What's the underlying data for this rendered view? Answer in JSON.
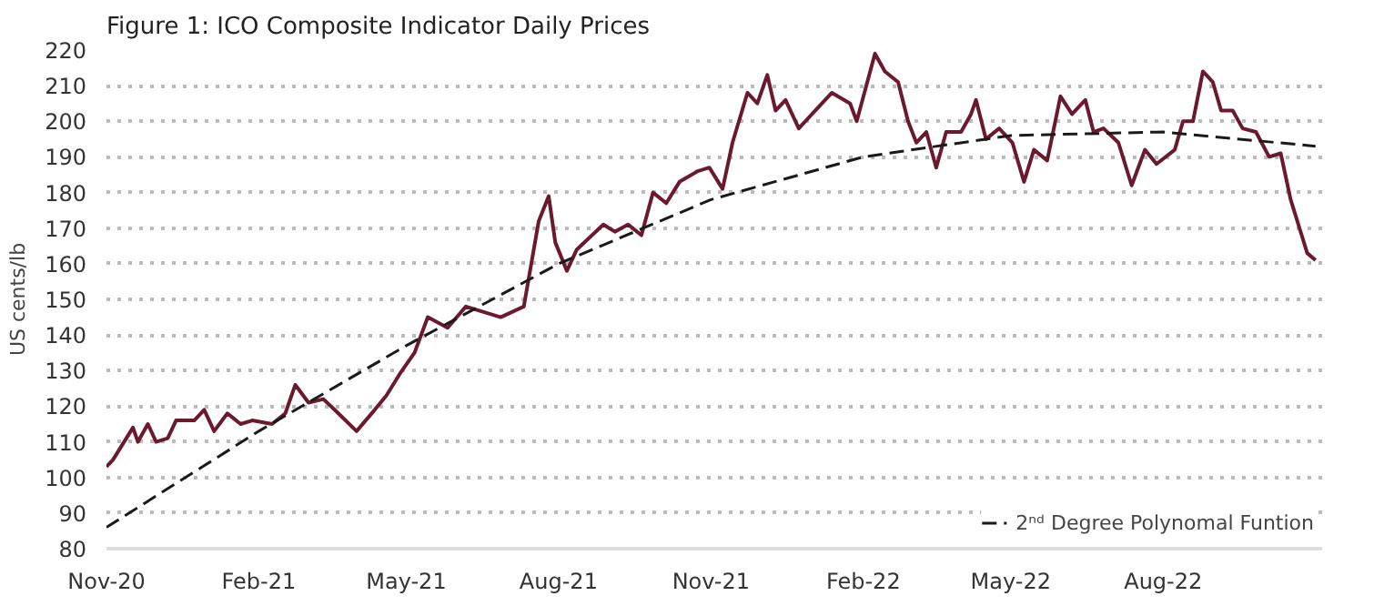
{
  "chart_data": {
    "type": "line",
    "title": "Figure 1: ICO Composite Indicator Daily Prices",
    "ylabel": "US cents/lb",
    "ylim": [
      80,
      220
    ],
    "yticks": [
      80,
      90,
      100,
      110,
      120,
      130,
      140,
      150,
      160,
      170,
      180,
      190,
      200,
      210,
      220
    ],
    "xlim": [
      "2020-11-01",
      "2022-11-05"
    ],
    "xticks": [
      {
        "value": "2020-11-01",
        "label": "Nov-20"
      },
      {
        "value": "2021-02-01",
        "label": "Feb-21"
      },
      {
        "value": "2021-05-01",
        "label": "May-21"
      },
      {
        "value": "2021-08-01",
        "label": "Aug-21"
      },
      {
        "value": "2021-11-01",
        "label": "Nov-21"
      },
      {
        "value": "2022-02-01",
        "label": "Feb-22"
      },
      {
        "value": "2022-05-01",
        "label": "May-22"
      },
      {
        "value": "2022-08-01",
        "label": "Aug-22"
      }
    ],
    "grid": "y",
    "legend": "bottom right",
    "series": [
      {
        "color": "#6b1a2e",
        "line_style": "solid",
        "x": [
          "2020-11-01",
          "2020-11-05",
          "2020-11-17",
          "2020-11-20",
          "2020-11-26",
          "2020-12-01",
          "2020-12-08",
          "2020-12-13",
          "2020-12-24",
          "2020-12-30",
          "2021-01-05",
          "2021-01-13",
          "2021-01-21",
          "2021-01-28",
          "2021-02-09",
          "2021-02-17",
          "2021-02-23",
          "2021-03-03",
          "2021-03-12",
          "2021-03-21",
          "2021-04-01",
          "2021-04-12",
          "2021-04-19",
          "2021-04-27",
          "2021-05-06",
          "2021-05-14",
          "2021-05-26",
          "2021-06-06",
          "2021-06-27",
          "2021-07-11",
          "2021-07-20",
          "2021-07-26",
          "2021-07-30",
          "2021-08-06",
          "2021-08-12",
          "2021-08-28",
          "2021-09-04",
          "2021-09-12",
          "2021-09-20",
          "2021-09-27",
          "2021-10-05",
          "2021-10-13",
          "2021-10-24",
          "2021-10-31",
          "2021-11-08",
          "2021-11-14",
          "2021-11-23",
          "2021-11-29",
          "2021-12-05",
          "2021-12-10",
          "2021-12-16",
          "2021-12-24",
          "2022-01-01",
          "2022-01-13",
          "2022-01-24",
          "2022-01-28",
          "2022-02-08",
          "2022-02-14",
          "2022-02-22",
          "2022-02-28",
          "2022-03-05",
          "2022-03-11",
          "2022-03-17",
          "2022-03-23",
          "2022-04-01",
          "2022-04-07",
          "2022-04-10",
          "2022-04-16",
          "2022-04-24",
          "2022-05-02",
          "2022-05-09",
          "2022-05-15",
          "2022-05-23",
          "2022-05-31",
          "2022-06-07",
          "2022-06-15",
          "2022-06-20",
          "2022-06-26",
          "2022-07-05",
          "2022-07-13",
          "2022-07-21",
          "2022-07-28",
          "2022-08-08",
          "2022-08-13",
          "2022-08-19",
          "2022-08-25",
          "2022-08-31",
          "2022-09-05",
          "2022-09-12",
          "2022-09-18",
          "2022-09-26",
          "2022-10-04",
          "2022-10-11",
          "2022-10-17",
          "2022-10-27",
          "2022-11-01"
        ],
        "values": [
          103,
          105,
          114,
          110,
          115,
          110,
          111,
          116,
          116,
          119,
          113,
          118,
          115,
          116,
          115,
          118,
          126,
          121,
          122,
          118,
          113,
          119,
          123,
          129,
          135,
          145,
          142,
          148,
          145,
          148,
          172,
          179,
          166,
          158,
          164,
          171,
          169,
          171,
          168,
          180,
          177,
          183,
          186,
          187,
          181,
          194,
          208,
          205,
          213,
          203,
          206,
          198,
          202,
          208,
          205,
          200,
          219,
          214,
          211,
          200,
          194,
          197,
          187,
          197,
          197,
          202,
          206,
          195,
          198,
          194,
          183,
          192,
          189,
          207,
          202,
          206,
          197,
          198,
          194,
          182,
          192,
          188,
          192,
          200,
          200,
          214,
          211,
          203,
          203,
          198,
          197,
          190,
          191,
          178,
          163,
          161
        ]
      },
      {
        "name": "2ⁿᵈ Degree Polynomal Funtion",
        "color": "#1a1a1a",
        "line_style": "dashed",
        "x": [
          "2020-11-01",
          "2021-02-01",
          "2021-05-01",
          "2021-08-01",
          "2021-11-01",
          "2022-02-01",
          "2022-05-01",
          "2022-08-01",
          "2022-11-01"
        ],
        "values": [
          86,
          113,
          137,
          160,
          178,
          190,
          196,
          197,
          193
        ]
      }
    ]
  }
}
